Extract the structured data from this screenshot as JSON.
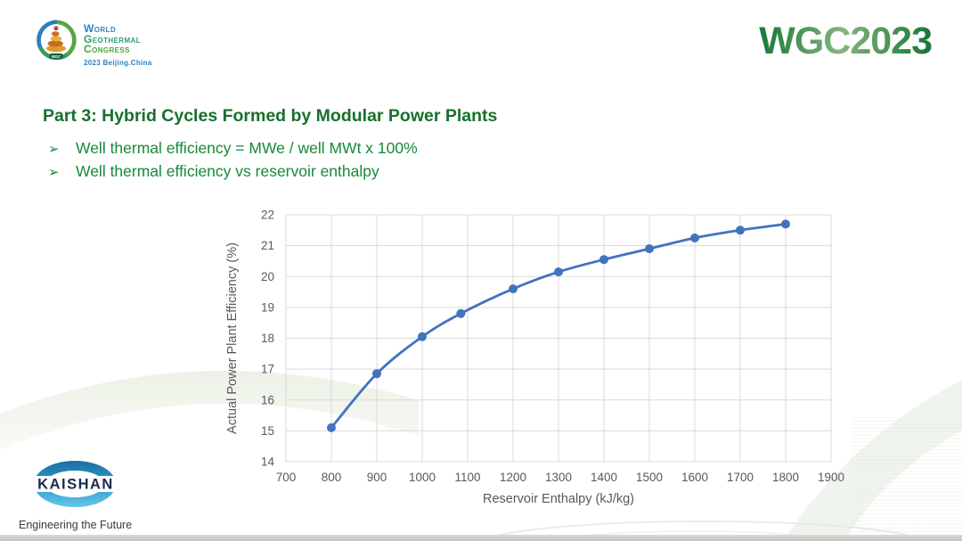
{
  "header": {
    "congress_logo": {
      "line1": "World",
      "line2": "Geothermal",
      "line3": "Congress",
      "line4": "2023 Beijing.China",
      "badge": "WGC"
    },
    "brand": "WGC2023"
  },
  "slide": {
    "title": "Part 3: Hybrid Cycles Formed by Modular Power Plants",
    "bullet_marker": "➢",
    "bullets": [
      "Well thermal efficiency = MWe / well MWt x 100%",
      "Well thermal efficiency vs reservoir enthalpy"
    ]
  },
  "chart_data": {
    "type": "line",
    "xlabel": "Reservoir Enthalpy (kJ/kg)",
    "ylabel": "Actual Power Plant Efficiency (%)",
    "xlim": [
      700,
      1900
    ],
    "ylim": [
      14,
      22
    ],
    "x_ticks": [
      700,
      800,
      900,
      1000,
      1100,
      1200,
      1300,
      1400,
      1500,
      1600,
      1700,
      1800,
      1900
    ],
    "y_ticks": [
      14,
      15,
      16,
      17,
      18,
      19,
      20,
      21,
      22
    ],
    "grid": true,
    "legend": false,
    "x": [
      800,
      900,
      1000,
      1085,
      1200,
      1300,
      1400,
      1500,
      1600,
      1700,
      1800
    ],
    "values": [
      15.1,
      16.85,
      18.05,
      18.8,
      19.6,
      20.15,
      20.55,
      20.9,
      21.25,
      21.5,
      21.7
    ],
    "line_color": "#4273be",
    "marker": "circle",
    "smooth": true
  },
  "footer": {
    "logo_text": "KAISHAN",
    "tagline": "Engineering the Future"
  },
  "colors": {
    "brand_green": "#1e8040",
    "title_green": "#17702c",
    "bullet_green": "#168a38",
    "chart_line": "#4273be",
    "grid_gray": "#d9d9d9",
    "axis_text": "#595959"
  }
}
